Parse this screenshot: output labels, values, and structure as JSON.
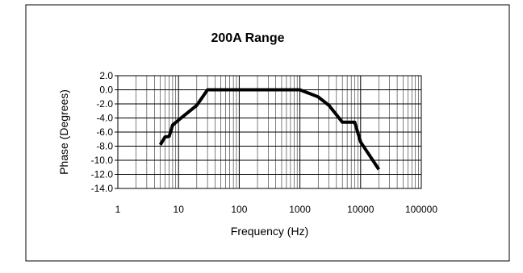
{
  "chart_data": {
    "type": "line",
    "title": "200A Range",
    "xlabel": "Frequency (Hz)",
    "ylabel": "Phase (Degrees)",
    "x_scale": "log",
    "xlim": [
      1,
      100000
    ],
    "ylim": [
      -14.0,
      2.0
    ],
    "x_ticks": [
      {
        "value": 1,
        "label": "1"
      },
      {
        "value": 10,
        "label": "10"
      },
      {
        "value": 100,
        "label": "100"
      },
      {
        "value": 1000,
        "label": "1000"
      },
      {
        "value": 10000,
        "label": "10000"
      },
      {
        "value": 100000,
        "label": "100000"
      }
    ],
    "y_ticks": [
      {
        "value": 2.0,
        "label": "2.0"
      },
      {
        "value": 0.0,
        "label": "0.0"
      },
      {
        "value": -2.0,
        "label": "-2.0"
      },
      {
        "value": -4.0,
        "label": "-4.0"
      },
      {
        "value": -6.0,
        "label": "-6.0"
      },
      {
        "value": -8.0,
        "label": "-8.0"
      },
      {
        "value": -10.0,
        "label": "-10.0"
      },
      {
        "value": -12.0,
        "label": "-12.0"
      },
      {
        "value": -14.0,
        "label": "-14.0"
      }
    ],
    "grid": true,
    "legend": "none",
    "series": [
      {
        "color": "#000000",
        "points": [
          {
            "x": 5,
            "y": -7.8
          },
          {
            "x": 6,
            "y": -6.7
          },
          {
            "x": 7,
            "y": -6.6
          },
          {
            "x": 8,
            "y": -5.0
          },
          {
            "x": 10,
            "y": -4.3
          },
          {
            "x": 20,
            "y": -2.2
          },
          {
            "x": 30,
            "y": 0.0
          },
          {
            "x": 100,
            "y": 0.0
          },
          {
            "x": 1000,
            "y": 0.0
          },
          {
            "x": 2000,
            "y": -1.0
          },
          {
            "x": 3000,
            "y": -2.2
          },
          {
            "x": 5000,
            "y": -4.6
          },
          {
            "x": 8000,
            "y": -4.6
          },
          {
            "x": 10000,
            "y": -7.4
          },
          {
            "x": 20000,
            "y": -11.3
          }
        ]
      }
    ]
  }
}
